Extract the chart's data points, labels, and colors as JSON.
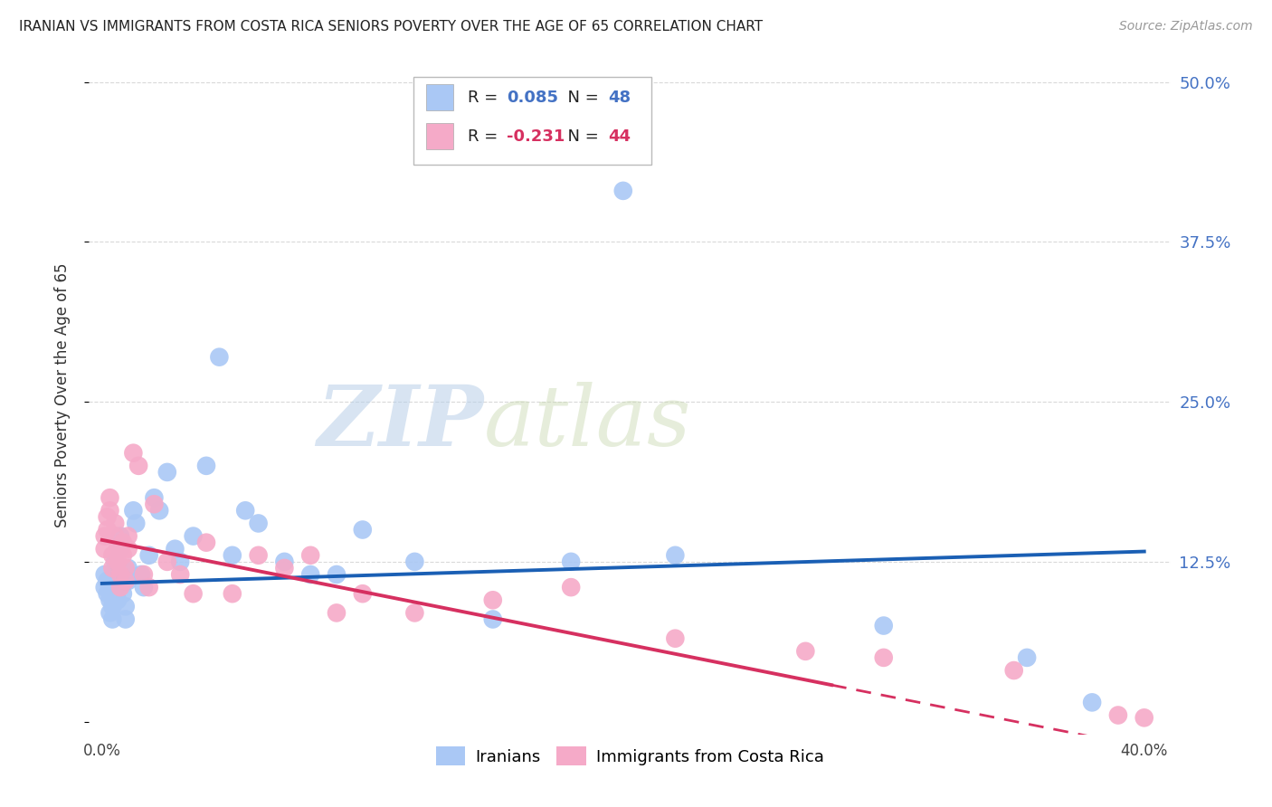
{
  "title": "IRANIAN VS IMMIGRANTS FROM COSTA RICA SENIORS POVERTY OVER THE AGE OF 65 CORRELATION CHART",
  "source": "Source: ZipAtlas.com",
  "ylabel": "Seniors Poverty Over the Age of 65",
  "xlim": [
    -0.005,
    0.41
  ],
  "ylim": [
    -0.01,
    0.52
  ],
  "xticks": [
    0.0,
    0.1,
    0.2,
    0.3,
    0.4
  ],
  "xticklabels": [
    "0.0%",
    "",
    "",
    "",
    "40.0%"
  ],
  "yticks": [
    0.0,
    0.125,
    0.25,
    0.375,
    0.5
  ],
  "yticklabels": [
    "",
    "12.5%",
    "25.0%",
    "37.5%",
    "50.0%"
  ],
  "series1_color": "#aac8f5",
  "series2_color": "#f5aac8",
  "line1_color": "#1a5fb4",
  "line2_color": "#d63060",
  "legend_label1": "Iranians",
  "legend_label2": "Immigrants from Costa Rica",
  "R1": 0.085,
  "N1": 48,
  "R2": -0.231,
  "N2": 44,
  "background_color": "#ffffff",
  "grid_color": "#d0d0d0",
  "watermark_zip": "ZIP",
  "watermark_atlas": "atlas",
  "line1_x0": 0.0,
  "line1_y0": 0.108,
  "line1_x1": 0.4,
  "line1_y1": 0.133,
  "line2_x0": 0.0,
  "line2_y0": 0.142,
  "line2_x1": 0.4,
  "line2_y1": -0.02,
  "line2_solid_end": 0.28,
  "iranians_x": [
    0.001,
    0.001,
    0.002,
    0.002,
    0.003,
    0.003,
    0.004,
    0.004,
    0.005,
    0.005,
    0.006,
    0.006,
    0.007,
    0.007,
    0.008,
    0.008,
    0.009,
    0.009,
    0.01,
    0.01,
    0.012,
    0.013,
    0.015,
    0.016,
    0.018,
    0.02,
    0.022,
    0.025,
    0.028,
    0.03,
    0.035,
    0.04,
    0.045,
    0.05,
    0.055,
    0.06,
    0.07,
    0.08,
    0.09,
    0.1,
    0.12,
    0.15,
    0.18,
    0.2,
    0.22,
    0.3,
    0.355,
    0.38
  ],
  "iranians_y": [
    0.115,
    0.105,
    0.11,
    0.1,
    0.095,
    0.085,
    0.09,
    0.08,
    0.125,
    0.115,
    0.105,
    0.095,
    0.145,
    0.135,
    0.11,
    0.1,
    0.09,
    0.08,
    0.12,
    0.11,
    0.165,
    0.155,
    0.115,
    0.105,
    0.13,
    0.175,
    0.165,
    0.195,
    0.135,
    0.125,
    0.145,
    0.2,
    0.285,
    0.13,
    0.165,
    0.155,
    0.125,
    0.115,
    0.115,
    0.15,
    0.125,
    0.08,
    0.125,
    0.415,
    0.13,
    0.075,
    0.05,
    0.015
  ],
  "costarica_x": [
    0.001,
    0.001,
    0.002,
    0.002,
    0.003,
    0.003,
    0.004,
    0.004,
    0.005,
    0.005,
    0.006,
    0.006,
    0.007,
    0.007,
    0.008,
    0.008,
    0.009,
    0.009,
    0.01,
    0.01,
    0.012,
    0.014,
    0.016,
    0.018,
    0.02,
    0.025,
    0.03,
    0.035,
    0.04,
    0.05,
    0.06,
    0.07,
    0.08,
    0.09,
    0.1,
    0.12,
    0.15,
    0.18,
    0.22,
    0.27,
    0.3,
    0.35,
    0.39,
    0.4
  ],
  "costarica_y": [
    0.145,
    0.135,
    0.16,
    0.15,
    0.175,
    0.165,
    0.13,
    0.12,
    0.155,
    0.145,
    0.135,
    0.125,
    0.115,
    0.105,
    0.14,
    0.13,
    0.12,
    0.11,
    0.145,
    0.135,
    0.21,
    0.2,
    0.115,
    0.105,
    0.17,
    0.125,
    0.115,
    0.1,
    0.14,
    0.1,
    0.13,
    0.12,
    0.13,
    0.085,
    0.1,
    0.085,
    0.095,
    0.105,
    0.065,
    0.055,
    0.05,
    0.04,
    0.005,
    0.003
  ]
}
